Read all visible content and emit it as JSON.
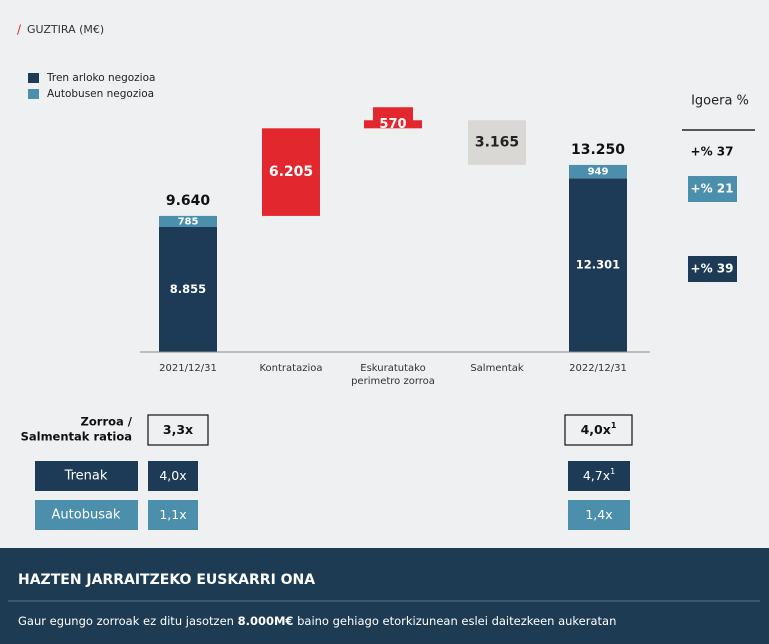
{
  "header": {
    "title": "GUZTIRA (M€)"
  },
  "chart_data": {
    "type": "waterfall",
    "categories": [
      "2021/12/31",
      "Kontratazioa",
      "Eskuratutako perimetro zorroa",
      "Salmentak",
      "2022/12/31"
    ],
    "series": [
      {
        "name": "Tren arloko negozioa",
        "color": "#1d3b57",
        "values": [
          8855,
          null,
          null,
          null,
          12301
        ],
        "value_labels": [
          "8.855",
          null,
          null,
          null,
          "12.301"
        ]
      },
      {
        "name": "Autobusen negozioa",
        "color": "#4b8fad",
        "values": [
          785,
          null,
          null,
          null,
          949
        ],
        "value_labels": [
          "785",
          null,
          null,
          null,
          "949"
        ]
      }
    ],
    "totals": [
      9640,
      null,
      null,
      null,
      13250
    ],
    "total_labels": [
      "9.640",
      null,
      null,
      null,
      "13.250"
    ],
    "change_values": [
      null,
      6205,
      570,
      3165,
      null
    ],
    "change_labels": [
      null,
      "6.205",
      "570",
      "3.165",
      null
    ],
    "change_colors": [
      null,
      "#e2282e",
      "#e2282e",
      "#d9d8d4",
      null
    ],
    "change_direction": [
      null,
      "up",
      "up",
      "down",
      null
    ],
    "ylim": [
      0,
      17000
    ],
    "legend": "top-left"
  },
  "growth": {
    "title": "Igoera %",
    "items": [
      {
        "label": "+% 37",
        "style": "plain"
      },
      {
        "label": "+% 21",
        "style": "light"
      },
      {
        "label": "+% 39",
        "style": "dark"
      }
    ]
  },
  "ratios": {
    "label_lines": [
      "Zorroa /",
      "Salmentak ratioa"
    ],
    "start": "3,3x",
    "end": "4,0x",
    "end_note": "1",
    "rows": [
      {
        "label": "Trenak",
        "start": "4,0x",
        "end": "4,7x",
        "end_note": "1"
      },
      {
        "label": "Autobusak",
        "start": "1,1x",
        "end": "1,4x"
      }
    ]
  },
  "footer": {
    "title": "HAZTEN JARRAITZEKO EUSKARRI ONA",
    "text_before": "Gaur egungo zorroak ez ditu jasotzen ",
    "text_bold": "8.000M€",
    "text_after": " baino gehiago etorkizunean eslei daitezkeen aukeratan"
  }
}
